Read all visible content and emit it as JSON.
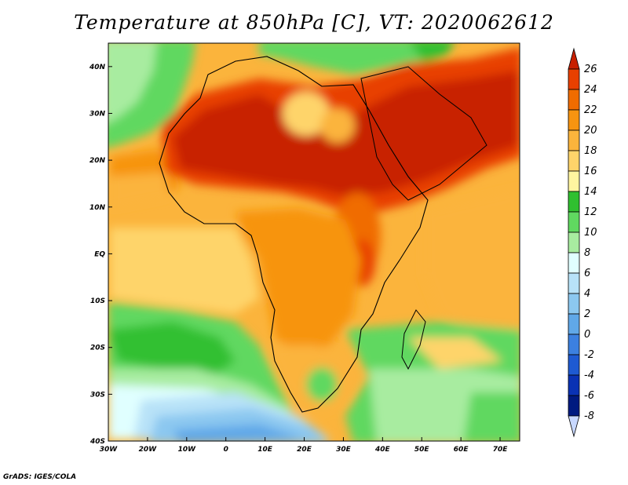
{
  "title": "Temperature at 850hPa [C], VT: 2020062612",
  "credit": "GrADS: IGES/COLA",
  "map": {
    "lon_range": [
      -30,
      75
    ],
    "lat_range": [
      -40,
      45
    ],
    "lon_ticks": [
      {
        "value": -30,
        "label": "30W"
      },
      {
        "value": -20,
        "label": "20W"
      },
      {
        "value": -10,
        "label": "10W"
      },
      {
        "value": 0,
        "label": "0"
      },
      {
        "value": 10,
        "label": "10E"
      },
      {
        "value": 20,
        "label": "20E"
      },
      {
        "value": 30,
        "label": "30E"
      },
      {
        "value": 40,
        "label": "40E"
      },
      {
        "value": 50,
        "label": "50E"
      },
      {
        "value": 60,
        "label": "60E"
      },
      {
        "value": 70,
        "label": "70E"
      }
    ],
    "lat_ticks": [
      {
        "value": 40,
        "label": "40N"
      },
      {
        "value": 30,
        "label": "30N"
      },
      {
        "value": 20,
        "label": "20N"
      },
      {
        "value": 10,
        "label": "10N"
      },
      {
        "value": 0,
        "label": "EQ"
      },
      {
        "value": -10,
        "label": "10S"
      },
      {
        "value": -20,
        "label": "20S"
      },
      {
        "value": -30,
        "label": "30S"
      },
      {
        "value": -40,
        "label": "40S"
      }
    ]
  },
  "colorbar": {
    "labels": [
      "26",
      "24",
      "22",
      "20",
      "18",
      "16",
      "14",
      "12",
      "10",
      "8",
      "6",
      "4",
      "2",
      "0",
      "-2",
      "-4",
      "-6",
      "-8"
    ],
    "colors": [
      "#c82000",
      "#e84000",
      "#f06c00",
      "#f79410",
      "#fbb43c",
      "#fed46a",
      "#fff5a0",
      "#30c030",
      "#60d860",
      "#a8eca0",
      "#e0ffff",
      "#b8e2f8",
      "#8cc8f0",
      "#60a8e8",
      "#3c80e0",
      "#1e5ad2",
      "#0a32b4",
      "#001a80",
      "#c8d8ff"
    ]
  }
}
